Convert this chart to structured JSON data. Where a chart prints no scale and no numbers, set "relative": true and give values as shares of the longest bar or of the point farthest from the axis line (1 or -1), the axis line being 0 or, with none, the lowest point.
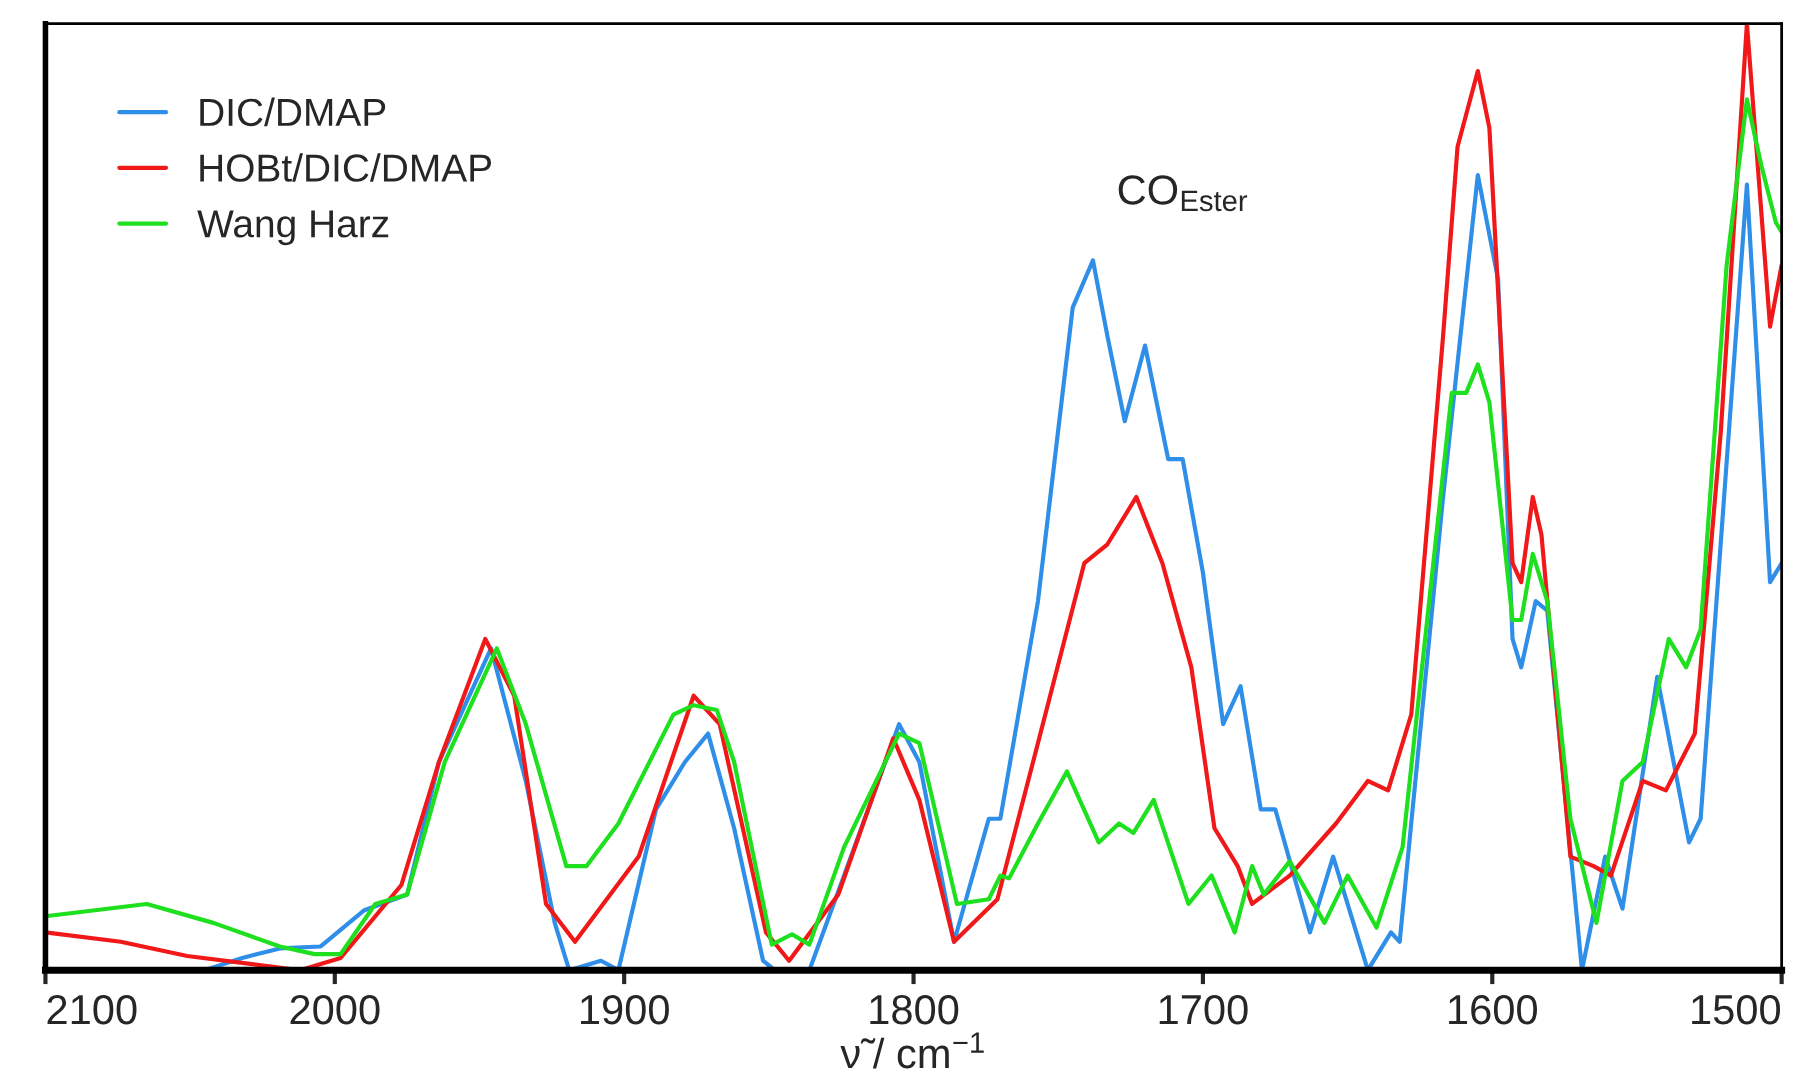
{
  "chart_data": {
    "type": "line",
    "relative": true,
    "xlabel": "ν̃ / cm$^{−1}$",
    "xlim": [
      2100,
      1500
    ],
    "xticks": [
      2100,
      2000,
      1900,
      1800,
      1700,
      1600,
      1500
    ],
    "legend": "top left",
    "grid": false,
    "marker": "none",
    "line_style": "solid",
    "annotations": [
      "CO$_{Ester}$"
    ],
    "series": [
      {
        "name": "DIC/DMAP",
        "color": "#2f8fe8",
        "x": [
          2100,
          2045,
          2032,
          2019,
          2005,
          1990,
          1975,
          1964,
          1946,
          1934,
          1924,
          1919,
          1908,
          1902,
          1889,
          1879,
          1871,
          1862,
          1852,
          1848,
          1836,
          1824,
          1805,
          1798,
          1786,
          1774,
          1770,
          1757,
          1745,
          1738,
          1733,
          1727,
          1720,
          1712,
          1707,
          1700,
          1693,
          1687,
          1680,
          1675,
          1663,
          1655,
          1643,
          1635,
          1632,
          1617,
          1605,
          1598,
          1593,
          1590,
          1585,
          1581,
          1569,
          1561,
          1555,
          1543,
          1532,
          1528,
          1512,
          1504,
          1500
        ],
        "values": [
          0,
          0,
          0.013,
          0.023,
          0.025,
          0.063,
          0.08,
          0.22,
          0.34,
          0.2,
          0.05,
          0,
          0.01,
          0,
          0.17,
          0.22,
          0.25,
          0.15,
          0.01,
          0,
          0,
          0.1,
          0.26,
          0.22,
          0.03,
          0.16,
          0.16,
          0.39,
          0.7,
          0.75,
          0.67,
          0.58,
          0.66,
          0.54,
          0.54,
          0.42,
          0.26,
          0.3,
          0.17,
          0.17,
          0.04,
          0.12,
          0,
          0.04,
          0.03,
          0.5,
          0.84,
          0.73,
          0.35,
          0.32,
          0.39,
          0.38,
          0,
          0.12,
          0.065,
          0.31,
          0.135,
          0.16,
          0.83,
          0.41,
          0.43
        ]
      },
      {
        "name": "HOBt/DIC/DMAP",
        "color": "#f01818",
        "x": [
          2100,
          2074,
          2051,
          2012,
          1998,
          1977,
          1964,
          1948,
          1938,
          1927,
          1917,
          1895,
          1876,
          1867,
          1851,
          1843,
          1826,
          1807,
          1798,
          1786,
          1771,
          1757,
          1741,
          1733,
          1723,
          1714,
          1704,
          1696,
          1688,
          1683,
          1670,
          1654,
          1643,
          1636,
          1628,
          1617,
          1612,
          1605,
          1601,
          1593,
          1590,
          1586,
          1583,
          1573,
          1565,
          1559,
          1548,
          1540,
          1530,
          1521,
          1512,
          1509,
          1504,
          1500
        ],
        "values": [
          0.04,
          0.03,
          0.015,
          0,
          0.013,
          0.09,
          0.22,
          0.35,
          0.29,
          0.07,
          0.03,
          0.12,
          0.29,
          0.26,
          0.04,
          0.01,
          0.08,
          0.245,
          0.18,
          0.03,
          0.075,
          0.24,
          0.43,
          0.45,
          0.5,
          0.43,
          0.32,
          0.15,
          0.11,
          0.07,
          0.1,
          0.155,
          0.2,
          0.19,
          0.27,
          0.67,
          0.87,
          0.95,
          0.89,
          0.43,
          0.41,
          0.5,
          0.46,
          0.12,
          0.11,
          0.1,
          0.2,
          0.19,
          0.25,
          0.57,
          1.0,
          0.88,
          0.68,
          0.745
        ]
      },
      {
        "name": "Wang Harz",
        "color": "#1ee01e",
        "x": [
          2100,
          2065,
          2042,
          2019,
          2007,
          1998,
          1986,
          1975,
          1962,
          1944,
          1934,
          1920,
          1913,
          1902,
          1883,
          1876,
          1868,
          1862,
          1849,
          1842,
          1836,
          1824,
          1805,
          1798,
          1785,
          1774,
          1770,
          1767,
          1757,
          1747,
          1736,
          1729,
          1724,
          1717,
          1705,
          1697,
          1689,
          1683,
          1679,
          1670,
          1658,
          1650,
          1640,
          1631,
          1614,
          1609,
          1605,
          1601,
          1593,
          1590,
          1586,
          1581,
          1573,
          1564,
          1555,
          1548,
          1539,
          1533,
          1528,
          1519,
          1512,
          1507,
          1502,
          1500
        ],
        "values": [
          0.057,
          0.07,
          0.05,
          0.025,
          0.017,
          0.017,
          0.07,
          0.08,
          0.22,
          0.34,
          0.26,
          0.11,
          0.11,
          0.155,
          0.27,
          0.28,
          0.275,
          0.22,
          0.027,
          0.038,
          0.027,
          0.13,
          0.25,
          0.24,
          0.07,
          0.075,
          0.1,
          0.097,
          0.155,
          0.21,
          0.135,
          0.155,
          0.145,
          0.18,
          0.07,
          0.1,
          0.04,
          0.11,
          0.08,
          0.115,
          0.05,
          0.1,
          0.045,
          0.13,
          0.61,
          0.61,
          0.64,
          0.6,
          0.37,
          0.37,
          0.44,
          0.39,
          0.16,
          0.05,
          0.2,
          0.22,
          0.35,
          0.32,
          0.36,
          0.745,
          0.92,
          0.85,
          0.79,
          0.78
        ]
      }
    ]
  }
}
